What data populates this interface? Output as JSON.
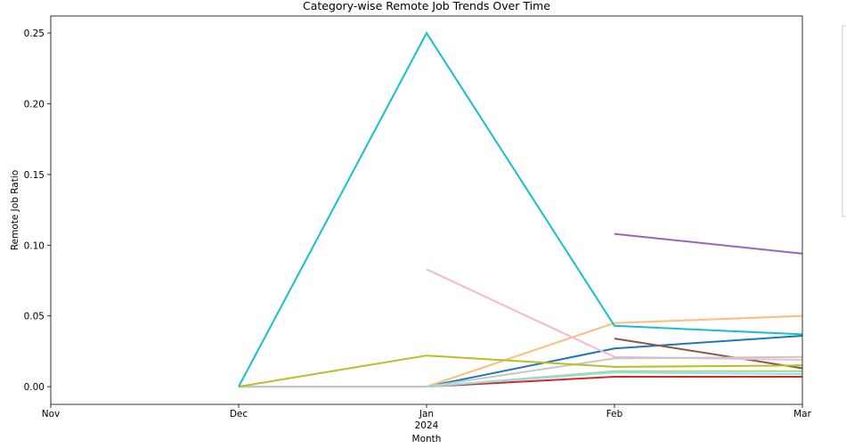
{
  "chart_data": {
    "type": "line",
    "title": "Category-wise Remote Job Trends Over Time",
    "xlabel": "Month",
    "ylabel": "Remote Job Ratio",
    "x": [
      "Nov",
      "Dec",
      "Jan",
      "Feb",
      "Mar"
    ],
    "x_sub": {
      "Jan": "2024"
    },
    "ylim": [
      -0.0125,
      0.262
    ],
    "yticks": [
      "0.00",
      "0.05",
      "0.10",
      "0.15",
      "0.20",
      "0.25"
    ],
    "grid": false,
    "legend": "right, clipped at image edge",
    "series": [
      {
        "color": "#1f77b4",
        "values": [
          null,
          0.0,
          0.0,
          0.027,
          0.036
        ]
      },
      {
        "color": "#ffbb78",
        "values": [
          null,
          null,
          0.0,
          0.045,
          0.05
        ]
      },
      {
        "color": "#d62728",
        "values": [
          null,
          null,
          0.0,
          0.007,
          0.007
        ]
      },
      {
        "color": "#9467bd",
        "values": [
          null,
          null,
          null,
          0.108,
          0.094
        ]
      },
      {
        "color": "#8c564b",
        "values": [
          null,
          null,
          null,
          0.034,
          0.013
        ]
      },
      {
        "color": "#f7b6d2",
        "values": [
          null,
          null,
          0.083,
          0.021,
          0.019
        ]
      },
      {
        "color": "#c7c7c7",
        "values": [
          null,
          0.0,
          0.0,
          0.02,
          0.021
        ]
      },
      {
        "color": "#98df8a",
        "values": [
          null,
          null,
          0.0,
          0.011,
          0.011
        ]
      },
      {
        "color": "#9edae5",
        "values": [
          null,
          null,
          0.0,
          0.01,
          0.009
        ]
      },
      {
        "color": "#bcbd22",
        "values": [
          null,
          0.0,
          0.022,
          0.014,
          0.015
        ]
      },
      {
        "color": "#17becf",
        "values": [
          null,
          0.0,
          0.25,
          0.043,
          0.037
        ]
      }
    ]
  }
}
